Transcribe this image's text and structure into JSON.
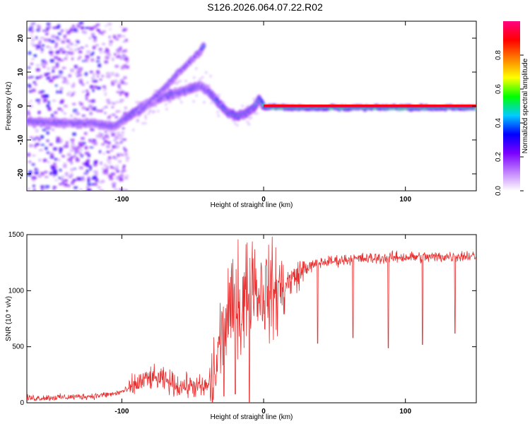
{
  "title": "S126.2026.064.07.22.R02",
  "chart_data": [
    {
      "type": "heatmap",
      "xlabel": "Height of straight line (km)",
      "ylabel": "Frequency (Hz)",
      "xlim": [
        -167,
        150
      ],
      "ylim": [
        -25,
        25
      ],
      "xticks": [
        -100,
        0,
        100
      ],
      "yticks": [
        -20,
        -10,
        0,
        10,
        20
      ],
      "colorbar": {
        "label": "Normalized spectral amplitude",
        "range": [
          0,
          1
        ],
        "ticks": [
          0.0,
          0.2,
          0.4,
          0.6,
          0.8
        ],
        "colors": [
          "#ffffff",
          "#c080ff",
          "#7a00ff",
          "#0000ff",
          "#00ccff",
          "#00ff00",
          "#ffff00",
          "#ff8000",
          "#ff0000",
          "#ff0080"
        ]
      },
      "ridges": [
        {
          "name": "main",
          "x": [
            -167,
            -140,
            -120,
            -105,
            -95,
            -85,
            -75,
            -65,
            -55,
            -45,
            -38,
            -32,
            -25,
            -18,
            -12,
            -6,
            -3,
            0,
            10,
            40,
            100,
            150
          ],
          "y": [
            -4.5,
            -5,
            -5,
            -6,
            -3,
            0,
            2,
            3.5,
            4.5,
            6,
            4,
            1,
            -2,
            -3,
            -2,
            0,
            2,
            0,
            -0.5,
            -0.5,
            -0.5,
            -0.5
          ]
        },
        {
          "name": "upper",
          "x": [
            -88,
            -78,
            -68,
            -60,
            -52,
            -45,
            -42
          ],
          "y": [
            -2,
            2,
            6,
            10,
            13,
            16,
            18
          ]
        }
      ]
    },
    {
      "type": "line",
      "xlabel": "Height of straight line (km)",
      "ylabel": "SNR (10 * v/v)",
      "xlim": [
        -167,
        150
      ],
      "ylim": [
        0,
        1500
      ],
      "xticks": [
        -100,
        0,
        100
      ],
      "yticks": [
        0,
        500,
        1000,
        1500
      ],
      "color": "#e83030",
      "series": [
        {
          "x": [
            -167,
            -140,
            -120,
            -105,
            -95,
            -88,
            -80,
            -70,
            -60,
            -50,
            -42,
            -35,
            -30,
            -25,
            -20,
            -15,
            -10,
            -5,
            0,
            5,
            10,
            15,
            20,
            25,
            30,
            40,
            60,
            80,
            100,
            120,
            140,
            150
          ],
          "y": [
            40,
            50,
            60,
            80,
            120,
            180,
            220,
            200,
            150,
            150,
            130,
            200,
            600,
            800,
            850,
            900,
            1000,
            1000,
            1000,
            980,
            1000,
            1050,
            1100,
            1150,
            1200,
            1250,
            1280,
            1290,
            1300,
            1300,
            1310,
            1310
          ]
        }
      ]
    }
  ]
}
